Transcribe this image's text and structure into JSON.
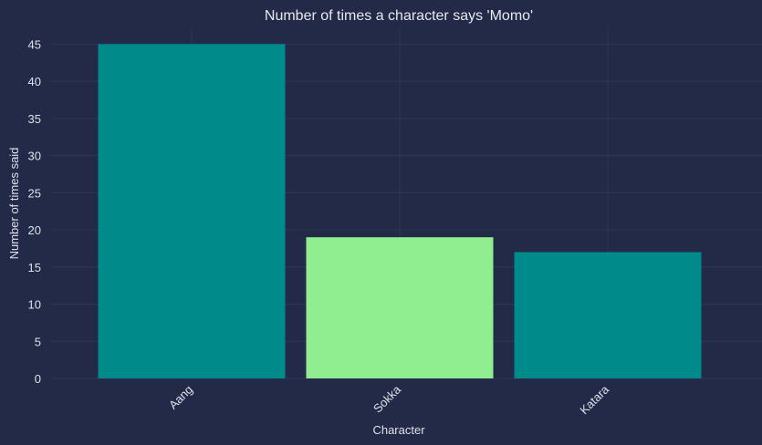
{
  "chart_data": {
    "type": "bar",
    "title": "Number of times a character says 'Momo'",
    "xlabel": "Character",
    "ylabel": "Number of times said",
    "categories": [
      "Aang",
      "Sokka",
      "Katara"
    ],
    "values": [
      45,
      19,
      17
    ],
    "bar_colors": [
      "#008b8b",
      "#90ee90",
      "#008b8b"
    ],
    "ylim": [
      0,
      47.25
    ],
    "yticks": [
      0,
      5,
      10,
      15,
      20,
      25,
      30,
      35,
      40,
      45
    ],
    "grid": true,
    "legend": "none"
  },
  "colors": {
    "background": "#222a48",
    "grid": "#2e3758",
    "text": "#e0e0ea"
  }
}
